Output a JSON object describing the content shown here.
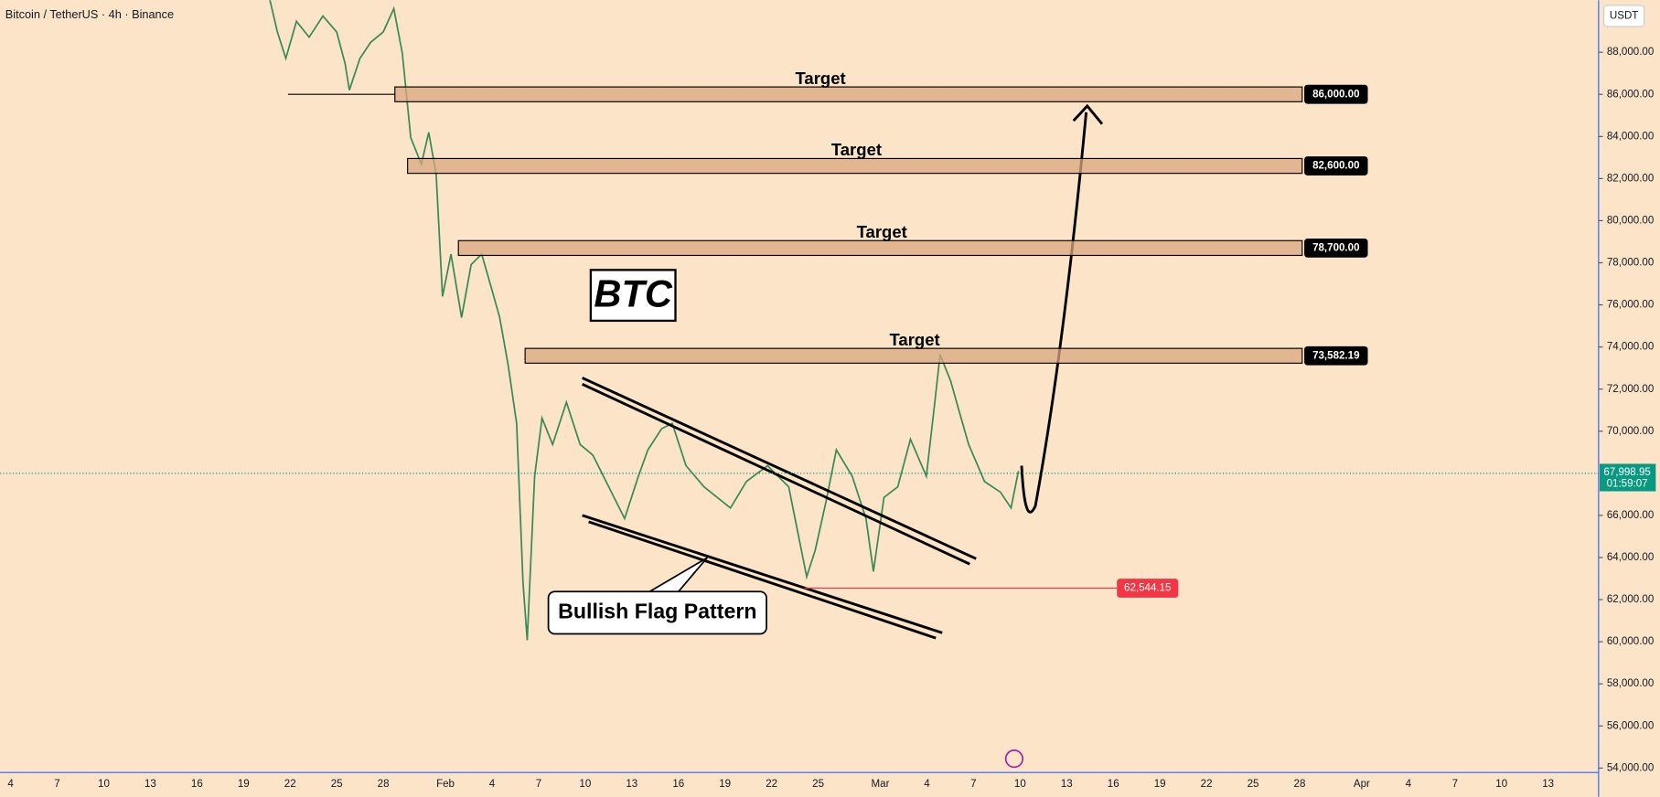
{
  "header": {
    "title": "Bitcoin / TetherUS · 4h · Binance"
  },
  "price_axis": {
    "unit": "USDT",
    "ticks": [
      {
        "value": 88000,
        "label": "88,000.00"
      },
      {
        "value": 86000,
        "label": "86,000.00"
      },
      {
        "value": 84000,
        "label": "84,000.00"
      },
      {
        "value": 82000,
        "label": "82,000.00"
      },
      {
        "value": 80000,
        "label": "80,000.00"
      },
      {
        "value": 78000,
        "label": "78,000.00"
      },
      {
        "value": 76000,
        "label": "76,000.00"
      },
      {
        "value": 74000,
        "label": "74,000.00"
      },
      {
        "value": 72000,
        "label": "72,000.00"
      },
      {
        "value": 70000,
        "label": "70,000.00"
      },
      {
        "value": 66000,
        "label": "66,000.00"
      },
      {
        "value": 64000,
        "label": "64,000.00"
      },
      {
        "value": 62000,
        "label": "62,000.00"
      },
      {
        "value": 60000,
        "label": "60,000.00"
      },
      {
        "value": 58000,
        "label": "58,000.00"
      },
      {
        "value": 56000,
        "label": "56,000.00"
      },
      {
        "value": 54000,
        "label": "54,000.00"
      }
    ]
  },
  "time_axis": {
    "labels": [
      "4",
      "7",
      "10",
      "13",
      "16",
      "19",
      "22",
      "25",
      "28",
      "Feb",
      "4",
      "7",
      "10",
      "13",
      "16",
      "19",
      "22",
      "25",
      "Mar",
      "4",
      "7",
      "10",
      "13",
      "16",
      "19",
      "22",
      "25",
      "28",
      "Apr",
      "4",
      "7",
      "10",
      "13"
    ]
  },
  "levels": [
    {
      "label": "Target",
      "price": 86000,
      "tag": "86,000.00"
    },
    {
      "label": "Target",
      "price": 82600,
      "tag": "82,600.00"
    },
    {
      "label": "Target",
      "price": 78700,
      "tag": "78,700.00"
    },
    {
      "label": "Target",
      "price": 73582.19,
      "tag": "73,582.19"
    }
  ],
  "current_price": {
    "price": 67998.95,
    "tag": "67,998.95",
    "countdown": "01:59:07"
  },
  "low": {
    "price": 62544.15,
    "tag": "62,544.15"
  },
  "annotations": {
    "symbol": "BTC",
    "pattern": "Bullish Flag Pattern"
  }
}
